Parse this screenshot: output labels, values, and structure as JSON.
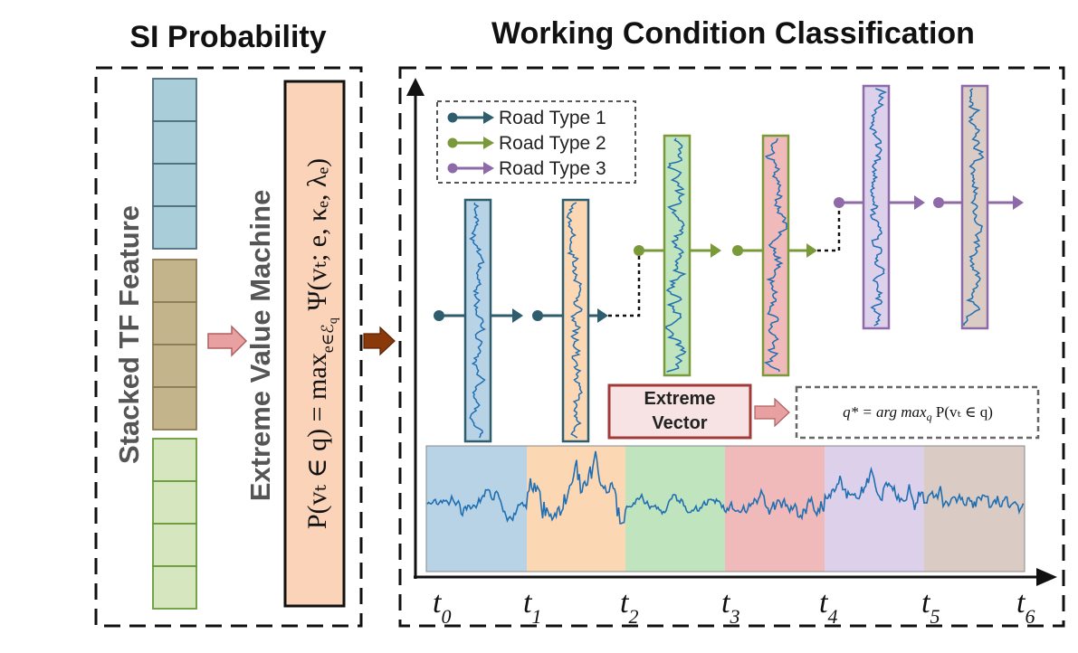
{
  "titles": {
    "left": "SI Probability",
    "right": "Working Condition Classification"
  },
  "labels": {
    "stacked_feature": "Stacked TF Feature",
    "evm": "Extreme Value Machine",
    "evm_formula": "P(vₜ ∈ q) = max",
    "evm_formula_sub": "e∈ℰ",
    "evm_formula_sub2": "q",
    "evm_formula_tail": " Ψ(vₜ; e, κₑ, λₑ)",
    "extreme_vector_line1": "Extreme",
    "extreme_vector_line2": "Vector",
    "argmax_formula": "q* = arg max",
    "argmax_sub": "q",
    "argmax_tail": " P(vₜ ∈ q)"
  },
  "legend": [
    {
      "label": "Road Type 1",
      "color": "#2e5e6e"
    },
    {
      "label": "Road Type 2",
      "color": "#7a9a3a"
    },
    {
      "label": "Road Type 3",
      "color": "#8e6aa8"
    }
  ],
  "time_ticks": [
    {
      "base": "t",
      "sub": "0"
    },
    {
      "base": "t",
      "sub": "1"
    },
    {
      "base": "t",
      "sub": "2"
    },
    {
      "base": "t",
      "sub": "3"
    },
    {
      "base": "t",
      "sub": "4"
    },
    {
      "base": "t",
      "sub": "5"
    },
    {
      "base": "t",
      "sub": "6"
    }
  ],
  "colors": {
    "block_blue": "#a9cdd9",
    "block_tan": "#c4b48c",
    "block_green": "#d6e6bf",
    "segment_colors": [
      "#b8d3e6",
      "#fcd7b4",
      "#c0e4bd",
      "#f0b9ba",
      "#ddd0ea",
      "#dacbc4"
    ],
    "signal": "#1f6fb2",
    "evm_fill": "#fbd3b8",
    "ev_fill": "#f7e3e3",
    "ev_border": "#a33a3a",
    "arrow_pink": "#e8a0a0",
    "arrow_brown": "#8a3a0a"
  }
}
